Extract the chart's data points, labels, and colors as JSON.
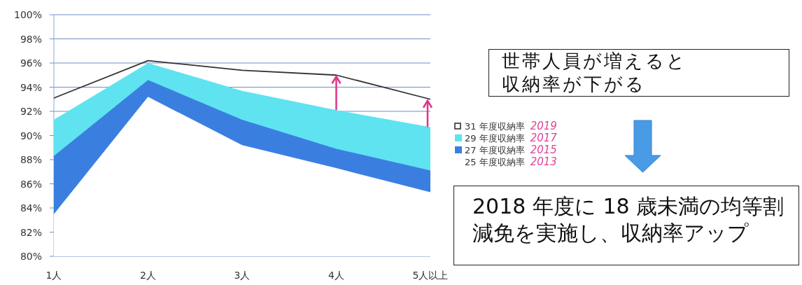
{
  "chart_data": {
    "type": "area",
    "categories": [
      "1人",
      "2人",
      "3人",
      "4人",
      "5人以上"
    ],
    "series": [
      {
        "name": "31 年度収納率",
        "type": "line",
        "color": "#333333",
        "values": [
          93.1,
          96.2,
          95.4,
          95.0,
          93.0
        ]
      },
      {
        "name": "29 年度収納率",
        "color": "#5fe3f0",
        "values": [
          91.3,
          96.0,
          93.7,
          92.1,
          90.7
        ]
      },
      {
        "name": "27 年度収納率",
        "color": "#3a7fe0",
        "values": [
          88.3,
          94.6,
          91.3,
          88.9,
          87.1
        ]
      },
      {
        "name": "25 年度収納率",
        "color": "#ffffff",
        "values": [
          83.5,
          93.2,
          89.2,
          87.3,
          85.3
        ]
      }
    ],
    "ylim": [
      80,
      100
    ],
    "yticks": [
      {
        "value": 80,
        "label": "80%"
      },
      {
        "value": 82,
        "label": "82%"
      },
      {
        "value": 84,
        "label": "84%"
      },
      {
        "value": 86,
        "label": "86%"
      },
      {
        "value": 88,
        "label": "88%"
      },
      {
        "value": 90,
        "label": "90%"
      },
      {
        "value": 92,
        "label": "92%"
      },
      {
        "value": 94,
        "label": "94%"
      },
      {
        "value": 96,
        "label": "96%"
      },
      {
        "value": 98,
        "label": "98%"
      },
      {
        "value": 100,
        "label": "100%"
      }
    ],
    "grid": "y",
    "legend": "right",
    "annotations": [
      "世帯人員が増えると収納率が下がる",
      "2018 年度に 18 歳未満の均等割減免を実施し、収納率アップ",
      "2019",
      "2017",
      "2015",
      "2013"
    ]
  }
}
